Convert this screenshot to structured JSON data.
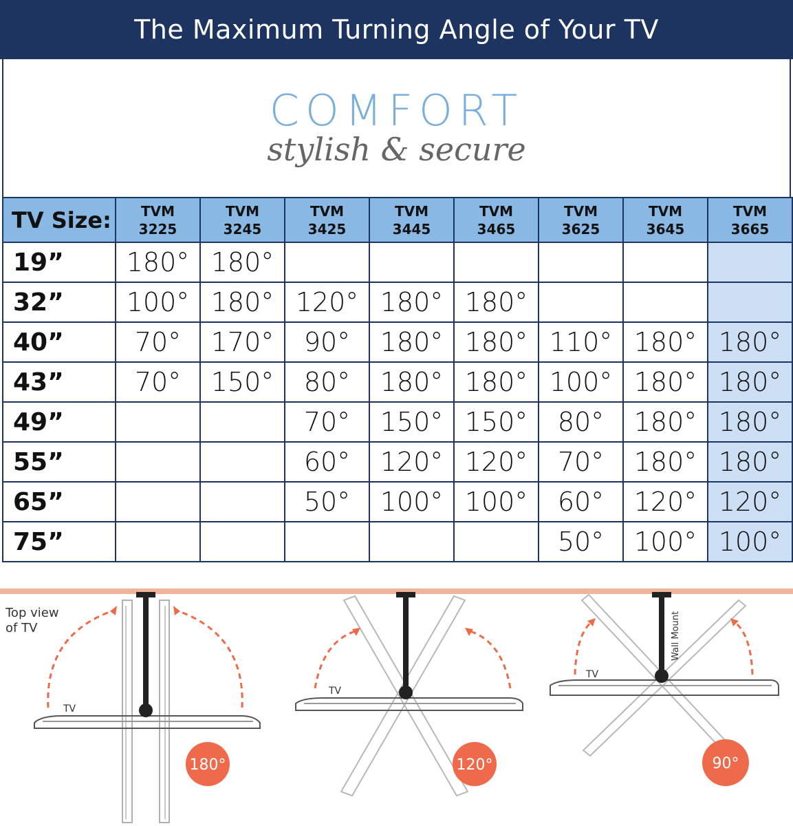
{
  "header": {
    "title": "The Maximum Turning Angle of Your TV"
  },
  "logo": {
    "brand": "COMFORT",
    "tagline": "stylish & secure",
    "brand_color": "#7aaedc"
  },
  "table": {
    "size_header": "TV Size:",
    "models": [
      {
        "line1": "TVM",
        "line2": "3225"
      },
      {
        "line1": "TVM",
        "line2": "3245"
      },
      {
        "line1": "TVM",
        "line2": "3425"
      },
      {
        "line1": "TVM",
        "line2": "3445"
      },
      {
        "line1": "TVM",
        "line2": "3465"
      },
      {
        "line1": "TVM",
        "line2": "3625"
      },
      {
        "line1": "TVM",
        "line2": "3645"
      },
      {
        "line1": "TVM",
        "line2": "3665"
      }
    ],
    "rows": [
      {
        "size": "19”",
        "values": [
          "180°",
          "180°",
          "",
          "",
          "",
          "",
          "",
          ""
        ]
      },
      {
        "size": "32”",
        "values": [
          "100°",
          "180°",
          "120°",
          "180°",
          "180°",
          "",
          "",
          ""
        ]
      },
      {
        "size": "40”",
        "values": [
          "70°",
          "170°",
          "90°",
          "180°",
          "180°",
          "110°",
          "180°",
          "180°"
        ]
      },
      {
        "size": "43”",
        "values": [
          "70°",
          "150°",
          "80°",
          "180°",
          "180°",
          "100°",
          "180°",
          "180°"
        ]
      },
      {
        "size": "49”",
        "values": [
          "",
          "",
          "70°",
          "150°",
          "150°",
          "80°",
          "180°",
          "180°"
        ]
      },
      {
        "size": "55”",
        "values": [
          "",
          "",
          "60°",
          "120°",
          "120°",
          "70°",
          "180°",
          "180°"
        ]
      },
      {
        "size": "65”",
        "values": [
          "",
          "",
          "50°",
          "100°",
          "100°",
          "60°",
          "120°",
          "120°"
        ]
      },
      {
        "size": "75”",
        "values": [
          "",
          "",
          "",
          "",
          "",
          "50°",
          "100°",
          "100°"
        ]
      }
    ],
    "header_color": "#8ab8e4",
    "highlight_color": "#cddff4"
  },
  "diagram": {
    "note_line1": "Top view",
    "note_line2": "of TV",
    "tv_label": "TV",
    "wall_mount_label": "Wall Mount",
    "angles": [
      "180°",
      "120°",
      "90°"
    ],
    "wall_color": "#f4b49a",
    "accent_color": "#ee6a4a"
  }
}
